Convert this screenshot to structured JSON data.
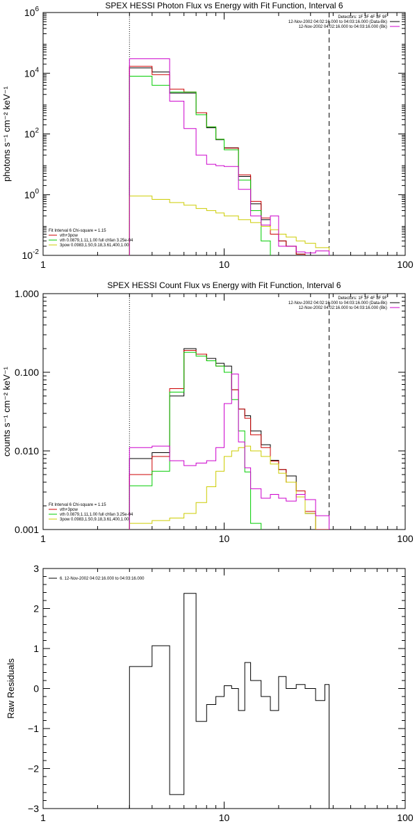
{
  "chart_data": [
    {
      "type": "line",
      "title": "SPEX HESSI Photon Flux vs Energy with Fit Function, Interval 6",
      "ylabel": "photons s⁻¹ cm⁻² keV⁻¹",
      "x_scale": "log",
      "y_scale": "log",
      "xlim": [
        1,
        100
      ],
      "ylim": [
        0.01,
        1000000
      ],
      "x_ticks": [
        {
          "v": 1,
          "t": "1"
        },
        {
          "v": 10,
          "t": "10"
        },
        {
          "v": 100,
          "t": "100"
        }
      ],
      "y_ticks": [
        {
          "v": 0.01,
          "b": "10",
          "e": "-2"
        },
        {
          "v": 1,
          "b": "10",
          "e": "0"
        },
        {
          "v": 100,
          "b": "10",
          "e": "2"
        },
        {
          "v": 10000,
          "b": "10",
          "e": "4"
        },
        {
          "v": 1000000,
          "b": "10",
          "e": "6"
        }
      ],
      "vlines": [
        {
          "x": 3,
          "style": "dotted"
        },
        {
          "x": 38,
          "style": "dashed"
        }
      ],
      "edges": [
        3,
        4,
        5,
        6,
        7,
        8,
        9,
        10,
        12,
        14,
        16,
        18,
        20,
        22,
        25,
        28,
        32,
        38
      ],
      "legend_right": [
        {
          "text": "Detectors: 1F 3F 4F 8F 9F",
          "color": ""
        },
        {
          "text": "12-Nov-2002 04:02:16.000 to 04:03:16.000 (Data-Bk)",
          "color": "#000000"
        },
        {
          "text": "12-Nov-2002 04:02:16.000 to 04:03:16.000 (Bk)",
          "color": "#cc00cc"
        }
      ],
      "legend_left": [
        {
          "text": "Fit Interval 6   Chi-square = 1.15",
          "color": ""
        },
        {
          "text": "vth+3pow",
          "color": "#cc0000"
        },
        {
          "text": "vth 0.0879,1.11,1.00  full chfan 3.25e-04",
          "color": "#00cc00"
        },
        {
          "text": "3pow 0.0983,1.50,9.18,3.61,400,1.00",
          "color": "#cccc00"
        }
      ],
      "series": [
        {
          "color": "#000000",
          "values": [
            15000,
            11000,
            2200,
            2200,
            500,
            160,
            65,
            35,
            4,
            0.5,
            0.15,
            0.05,
            0.03,
            0.02,
            0.011,
            0.009,
            0.008
          ]
        },
        {
          "color": "#cc0000",
          "values": [
            17000,
            9000,
            3000,
            2400,
            500,
            170,
            67,
            34,
            4.5,
            0.6,
            0.17,
            0.05,
            0.03,
            0.02,
            0.011,
            0.008,
            0.006
          ]
        },
        {
          "color": "#00cc00",
          "values": [
            8000,
            4000,
            2400,
            2400,
            430,
            170,
            67,
            30,
            3,
            0.3,
            0.03,
            0.008
          ]
        },
        {
          "color": "#cccc00",
          "values": [
            0.9,
            0.7,
            0.55,
            0.45,
            0.35,
            0.3,
            0.25,
            0.2,
            0.15,
            0.12,
            0.09,
            0.07,
            0.05,
            0.04,
            0.03,
            0.025,
            0.018
          ]
        },
        {
          "color": "#cc00cc",
          "values": [
            30000,
            30000,
            1200,
            150,
            20,
            10,
            9,
            8.5,
            1.5,
            0.2,
            0.1,
            0.2,
            0.02,
            0.02,
            0.013,
            0.012,
            0.014
          ]
        }
      ]
    },
    {
      "type": "line",
      "title": "SPEX HESSI Count Flux vs Energy with Fit Function, Interval 6",
      "ylabel": "counts s⁻¹ cm⁻² keV⁻¹",
      "x_scale": "log",
      "y_scale": "log",
      "xlim": [
        1,
        100
      ],
      "ylim": [
        0.001,
        1
      ],
      "x_ticks": [
        {
          "v": 1,
          "t": "1"
        },
        {
          "v": 10,
          "t": "10"
        },
        {
          "v": 100,
          "t": "100"
        }
      ],
      "y_ticks": [
        {
          "v": 0.001,
          "t": "0.001"
        },
        {
          "v": 0.01,
          "t": "0.010"
        },
        {
          "v": 0.1,
          "t": "0.100"
        },
        {
          "v": 1,
          "t": "1.000"
        }
      ],
      "vlines": [
        {
          "x": 3,
          "style": "dotted"
        },
        {
          "x": 38,
          "style": "dashed"
        }
      ],
      "edges": [
        3,
        4,
        5,
        6,
        7,
        8,
        9,
        10,
        11,
        12,
        13,
        14,
        16,
        18,
        20,
        22,
        25,
        28,
        32,
        38
      ],
      "legend_right": [
        {
          "text": "Detectors: 1F 3F 4F 8F 9F",
          "color": ""
        },
        {
          "text": "12-Nov-2002 04:02:16.000 to 04:03:16.000 (Data-Bk)",
          "color": "#000000"
        },
        {
          "text": "12-Nov-2002 04:02:16.000 to 04:03:16.000 (Bk)",
          "color": "#cc00cc"
        }
      ],
      "legend_left": [
        {
          "text": "Fit Interval 6   Chi-square = 1.15",
          "color": ""
        },
        {
          "text": "vth+3pow",
          "color": "#cc0000"
        },
        {
          "text": "vth 0.0879,1.11,1.00  full chfan 3.25e-04",
          "color": "#00cc00"
        },
        {
          "text": "3pow 0.0983,1.50,9.18,3.61,400,1.00",
          "color": "#cccc00"
        }
      ],
      "series": [
        {
          "color": "#000000",
          "values": [
            0.008,
            0.0095,
            0.05,
            0.2,
            0.17,
            0.15,
            0.13,
            0.12,
            0.06,
            0.034,
            0.028,
            0.018,
            0.012,
            0.0076,
            0.0058,
            0.0048,
            0.0031,
            0.0016,
            0.001
          ]
        },
        {
          "color": "#cc0000",
          "values": [
            0.005,
            0.0085,
            0.062,
            0.19,
            0.17,
            0.14,
            0.12,
            0.1,
            0.06,
            0.034,
            0.026,
            0.016,
            0.011,
            0.0074,
            0.0058,
            0.004,
            0.0031,
            0.0017,
            0.001
          ]
        },
        {
          "color": "#00cc00",
          "values": [
            0.0036,
            0.0055,
            0.056,
            0.18,
            0.16,
            0.14,
            0.12,
            0.1,
            0.045,
            0.018,
            0.0054,
            0.0012
          ]
        },
        {
          "color": "#cccc00",
          "values": [
            0.0012,
            0.0013,
            0.0014,
            0.0016,
            0.0022,
            0.0035,
            0.0055,
            0.0085,
            0.01,
            0.011,
            0.0115,
            0.01,
            0.0085,
            0.0068,
            0.0052,
            0.004,
            0.0026,
            0.0016,
            0.0009
          ]
        },
        {
          "color": "#cc00cc",
          "values": [
            0.011,
            0.0115,
            0.0075,
            0.0065,
            0.007,
            0.0075,
            0.011,
            0.04,
            0.095,
            0.013,
            0.0061,
            0.0033,
            0.0025,
            0.0028,
            0.0025,
            0.0023,
            0.0028,
            0.0024,
            0.0015
          ]
        }
      ]
    },
    {
      "type": "line",
      "title": "",
      "ylabel": "Raw Residuals",
      "x_scale": "log",
      "y_scale": "linear",
      "xlim": [
        1,
        100
      ],
      "ylim": [
        -3,
        3
      ],
      "x_ticks": [
        {
          "v": 1,
          "t": "1"
        },
        {
          "v": 10,
          "t": "10"
        },
        {
          "v": 100,
          "t": "100"
        }
      ],
      "y_ticks": [
        {
          "v": -3,
          "t": "−3"
        },
        {
          "v": -2,
          "t": "−2"
        },
        {
          "v": -1,
          "t": "−1"
        },
        {
          "v": 0,
          "t": "0"
        },
        {
          "v": 1,
          "t": "1"
        },
        {
          "v": 2,
          "t": "2"
        },
        {
          "v": 3,
          "t": "3"
        }
      ],
      "vlines": [],
      "edges": [
        3,
        4,
        5,
        6,
        7,
        8,
        9,
        10,
        11,
        12,
        13,
        14,
        16,
        18,
        20,
        22,
        25,
        28,
        32,
        36,
        38
      ],
      "legend_right": [],
      "legend_left": [
        {
          "text": "6. 12-Nov-2002 04:02:16.000 to 04:03:16.000",
          "color": "#000000"
        }
      ],
      "series": [
        {
          "color": "#000000",
          "values": [
            0.55,
            1.07,
            -2.65,
            2.38,
            -0.82,
            -0.4,
            -0.2,
            0.07,
            0.0,
            -0.55,
            0.65,
            0.2,
            -0.2,
            -0.55,
            0.3,
            0.0,
            0.1,
            0.0,
            -0.3,
            0.1
          ]
        }
      ]
    }
  ]
}
